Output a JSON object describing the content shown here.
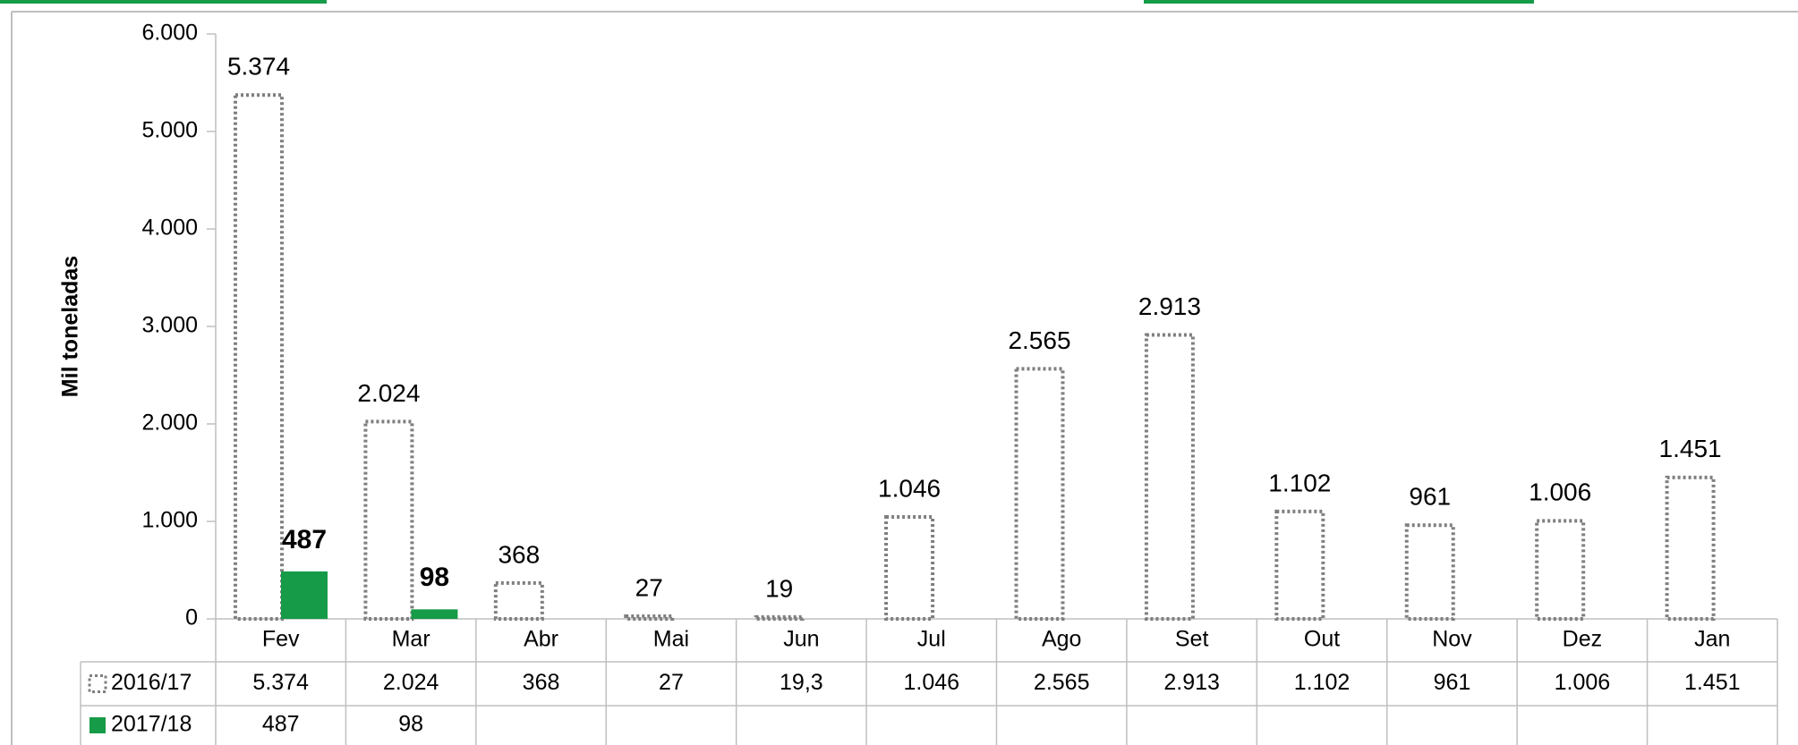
{
  "chart_data": {
    "type": "bar",
    "y_label": "Mil toneladas",
    "categories": [
      "Fev",
      "Mar",
      "Abr",
      "Mai",
      "Jun",
      "Jul",
      "Ago",
      "Set",
      "Out",
      "Nov",
      "Dez",
      "Jan"
    ],
    "series": [
      {
        "name": "2016/17",
        "color": "#7f7f7f",
        "style": "dotted",
        "values": [
          5374,
          2024,
          368,
          27,
          19.3,
          1046,
          2565,
          2913,
          1102,
          961,
          1006,
          1451
        ],
        "value_labels": [
          "5.374",
          "2.024",
          "368",
          "27",
          "19",
          "1.046",
          "2.565",
          "2.913",
          "1.102",
          "961",
          "1.006",
          "1.451"
        ],
        "value_label_colors": [
          "#7f7f7f",
          "#7f7f7f",
          "#7f7f7f",
          "#7f7f7f",
          "#7f7f7f",
          "#7f7f7f",
          "#7f7f7f",
          "#7f7f7f",
          "#7f7f7f",
          "#7f7f7f",
          "#7f7f7f",
          "#7f7f7f"
        ],
        "table_labels": [
          "5.374",
          "2.024",
          "368",
          "27",
          "19,3",
          "1.046",
          "2.565",
          "2.913",
          "1.102",
          "961",
          "1.006",
          "1.451"
        ]
      },
      {
        "name": "2017/18",
        "color": "#169b48",
        "style": "solid",
        "values": [
          487,
          98,
          null,
          null,
          null,
          null,
          null,
          null,
          null,
          null,
          null,
          null
        ],
        "value_labels": [
          "487",
          "98",
          null,
          null,
          null,
          null,
          null,
          null,
          null,
          null,
          null,
          null
        ],
        "value_label_colors": [
          "#000000",
          "#ff0000",
          null,
          null,
          null,
          null,
          null,
          null,
          null,
          null,
          null,
          null
        ],
        "table_labels": [
          "487",
          "98",
          null,
          null,
          null,
          null,
          null,
          null,
          null,
          null,
          null,
          null
        ]
      }
    ],
    "ylim": [
      0,
      6000
    ],
    "yticks": [
      0,
      {
        "value": 1000,
        "label": "1.000"
      },
      {
        "value": 2000,
        "label": "2.000"
      },
      {
        "value": 3000,
        "label": "3.000"
      },
      {
        "value": 4000,
        "label": "4.000"
      },
      {
        "value": 5000,
        "label": "5.000"
      },
      {
        "value": 6000,
        "label": "6.000"
      }
    ],
    "grid": false
  }
}
